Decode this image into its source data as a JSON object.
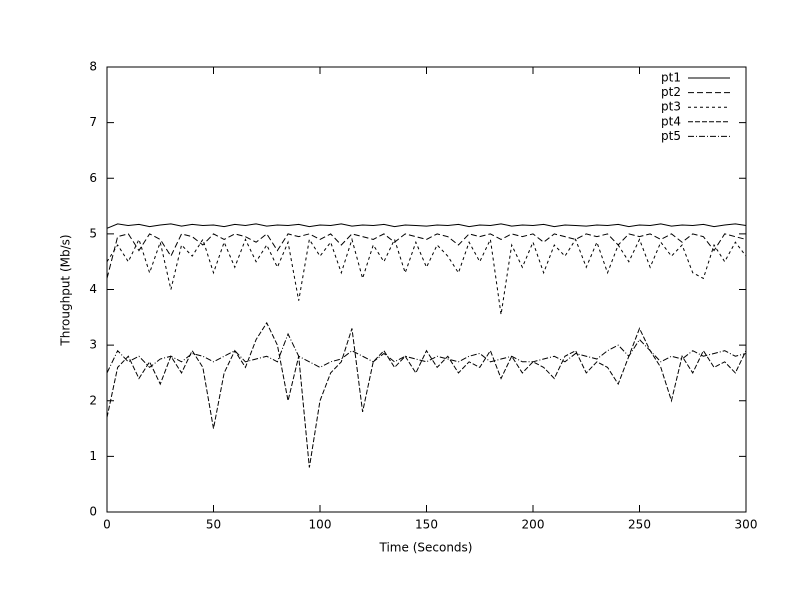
{
  "chart_data": {
    "type": "line",
    "xlabel": "Time (Seconds)",
    "ylabel": "Throughput (Mb/s)",
    "xlim": [
      0,
      300
    ],
    "ylim": [
      0,
      8
    ],
    "xticks": [
      0,
      50,
      100,
      150,
      200,
      250,
      300
    ],
    "yticks": [
      0,
      1,
      2,
      3,
      4,
      5,
      6,
      7,
      8
    ],
    "legend": "top-right",
    "x": [
      0,
      5,
      10,
      15,
      20,
      25,
      30,
      35,
      40,
      45,
      50,
      55,
      60,
      65,
      70,
      75,
      80,
      85,
      90,
      95,
      100,
      105,
      110,
      115,
      120,
      125,
      130,
      135,
      140,
      145,
      150,
      155,
      160,
      165,
      170,
      175,
      180,
      185,
      190,
      195,
      200,
      205,
      210,
      215,
      220,
      225,
      230,
      235,
      240,
      245,
      250,
      255,
      260,
      265,
      270,
      275,
      280,
      285,
      290,
      295,
      300
    ],
    "series": [
      {
        "name": "pt1",
        "color": "#000000",
        "dash": "none",
        "values": [
          5.1,
          5.18,
          5.15,
          5.17,
          5.13,
          5.16,
          5.18,
          5.14,
          5.17,
          5.15,
          5.16,
          5.13,
          5.17,
          5.15,
          5.18,
          5.14,
          5.16,
          5.15,
          5.17,
          5.13,
          5.16,
          5.15,
          5.18,
          5.14,
          5.16,
          5.15,
          5.17,
          5.13,
          5.16,
          5.15,
          5.14,
          5.16,
          5.15,
          5.17,
          5.13,
          5.16,
          5.15,
          5.18,
          5.14,
          5.16,
          5.15,
          5.17,
          5.13,
          5.16,
          5.15,
          5.14,
          5.16,
          5.15,
          5.17,
          5.13,
          5.16,
          5.15,
          5.18,
          5.14,
          5.16,
          5.15,
          5.17,
          5.13,
          5.16,
          5.18,
          5.15
        ]
      },
      {
        "name": "pt2",
        "color": "#000000",
        "dash": "6,3",
        "values": [
          4.2,
          4.95,
          5.0,
          4.7,
          5.0,
          4.9,
          4.6,
          5.0,
          4.95,
          4.8,
          5.0,
          4.9,
          5.0,
          4.95,
          4.85,
          5.0,
          4.7,
          5.0,
          4.95,
          5.0,
          4.9,
          5.0,
          4.8,
          5.0,
          4.95,
          4.9,
          5.0,
          4.85,
          5.0,
          4.95,
          4.9,
          5.0,
          4.95,
          4.8,
          5.0,
          4.95,
          5.0,
          4.9,
          5.0,
          4.95,
          5.0,
          4.85,
          5.0,
          4.95,
          4.9,
          5.0,
          4.95,
          5.0,
          4.8,
          5.0,
          4.95,
          5.0,
          4.9,
          5.0,
          4.85,
          5.0,
          4.95,
          4.7,
          5.0,
          4.95,
          4.9
        ]
      },
      {
        "name": "pt3",
        "color": "#000000",
        "dash": "3,3",
        "values": [
          4.5,
          4.8,
          4.5,
          4.9,
          4.3,
          4.85,
          4.0,
          4.8,
          4.6,
          4.9,
          4.3,
          4.85,
          4.4,
          4.9,
          4.5,
          4.8,
          4.4,
          4.85,
          3.8,
          4.9,
          4.6,
          4.85,
          4.3,
          4.9,
          4.2,
          4.8,
          4.5,
          4.9,
          4.3,
          4.85,
          4.4,
          4.8,
          4.6,
          4.3,
          4.85,
          4.5,
          4.9,
          3.55,
          4.8,
          4.4,
          4.85,
          4.3,
          4.8,
          4.6,
          4.9,
          4.4,
          4.85,
          4.3,
          4.8,
          4.5,
          4.9,
          4.4,
          4.85,
          4.6,
          4.8,
          4.3,
          4.2,
          4.8,
          4.5,
          4.85,
          4.6
        ]
      },
      {
        "name": "pt4",
        "color": "#000000",
        "dash": "5,2",
        "values": [
          1.7,
          2.6,
          2.8,
          2.4,
          2.7,
          2.3,
          2.8,
          2.5,
          2.9,
          2.6,
          1.5,
          2.5,
          2.9,
          2.6,
          3.1,
          3.4,
          3.0,
          2.0,
          2.8,
          0.8,
          2.0,
          2.5,
          2.7,
          3.3,
          1.8,
          2.7,
          2.9,
          2.6,
          2.8,
          2.5,
          2.9,
          2.6,
          2.8,
          2.5,
          2.7,
          2.6,
          2.9,
          2.4,
          2.8,
          2.5,
          2.7,
          2.6,
          2.4,
          2.8,
          2.9,
          2.5,
          2.7,
          2.6,
          2.3,
          2.8,
          3.3,
          2.9,
          2.6,
          2.0,
          2.8,
          2.5,
          2.9,
          2.6,
          2.7,
          2.5,
          2.9
        ]
      },
      {
        "name": "pt5",
        "color": "#000000",
        "dash": "6,2,1,2",
        "values": [
          2.5,
          2.9,
          2.7,
          2.8,
          2.6,
          2.75,
          2.8,
          2.7,
          2.85,
          2.8,
          2.7,
          2.8,
          2.9,
          2.7,
          2.75,
          2.8,
          2.7,
          3.2,
          2.8,
          2.7,
          2.6,
          2.7,
          2.75,
          2.9,
          2.8,
          2.7,
          2.85,
          2.7,
          2.8,
          2.75,
          2.7,
          2.8,
          2.75,
          2.7,
          2.8,
          2.85,
          2.7,
          2.75,
          2.8,
          2.7,
          2.7,
          2.75,
          2.8,
          2.7,
          2.85,
          2.8,
          2.75,
          2.9,
          3.0,
          2.8,
          3.1,
          2.9,
          2.7,
          2.8,
          2.75,
          2.9,
          2.8,
          2.85,
          2.9,
          2.8,
          2.85
        ]
      }
    ]
  }
}
